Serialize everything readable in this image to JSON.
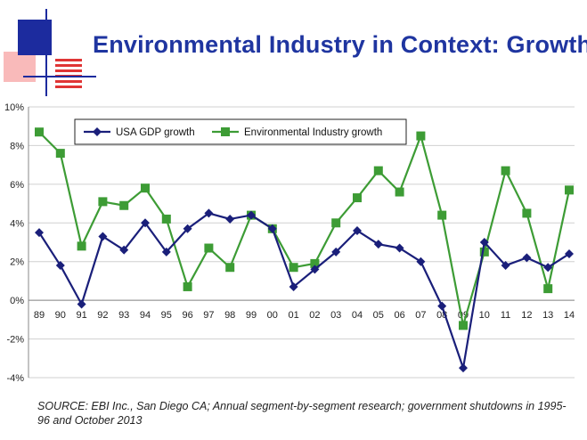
{
  "slide": {
    "title": "Environmental Industry in Context: Growth",
    "source": "SOURCE:  EBI Inc., San Diego CA; Annual segment-by-segment research; government shutdowns in 1995-96 and October 2013"
  },
  "colors": {
    "title": "#1f35a0",
    "gdp_series": "#1a1f7a",
    "env_series": "#3d9c35",
    "logo_blue": "#1c2b9e",
    "logo_red": "#e03535"
  },
  "chart_data": {
    "type": "line",
    "categories": [
      "89",
      "90",
      "91",
      "92",
      "93",
      "94",
      "95",
      "96",
      "97",
      "98",
      "99",
      "00",
      "01",
      "02",
      "03",
      "04",
      "05",
      "06",
      "07",
      "08",
      "09",
      "10",
      "11",
      "12",
      "13",
      "14"
    ],
    "ylim": [
      -4,
      10
    ],
    "yticks": [
      -4,
      -2,
      0,
      2,
      4,
      6,
      8,
      10
    ],
    "ytick_labels": [
      "-4%",
      "-2%",
      "0%",
      "2%",
      "4%",
      "6%",
      "8%",
      "10%"
    ],
    "grid": "horizontal",
    "legend_position": "top-left",
    "series": [
      {
        "name": "USA GDP growth",
        "marker": "diamond",
        "color": "#1a1f7a",
        "values": [
          3.5,
          1.8,
          -0.2,
          3.3,
          2.6,
          4.0,
          2.5,
          3.7,
          4.5,
          4.2,
          4.4,
          3.7,
          0.7,
          1.6,
          2.5,
          3.6,
          2.9,
          2.7,
          2.0,
          -0.3,
          -3.5,
          3.0,
          1.8,
          2.2,
          1.7,
          2.4
        ]
      },
      {
        "name": "Environmental Industry growth",
        "marker": "square",
        "color": "#3d9c35",
        "values": [
          8.7,
          7.6,
          2.8,
          5.1,
          4.9,
          5.8,
          4.2,
          0.7,
          2.7,
          1.7,
          4.4,
          3.7,
          1.7,
          1.9,
          4.0,
          5.3,
          6.7,
          5.6,
          8.5,
          4.4,
          -1.3,
          2.5,
          6.7,
          4.5,
          0.6,
          5.7
        ]
      }
    ]
  }
}
